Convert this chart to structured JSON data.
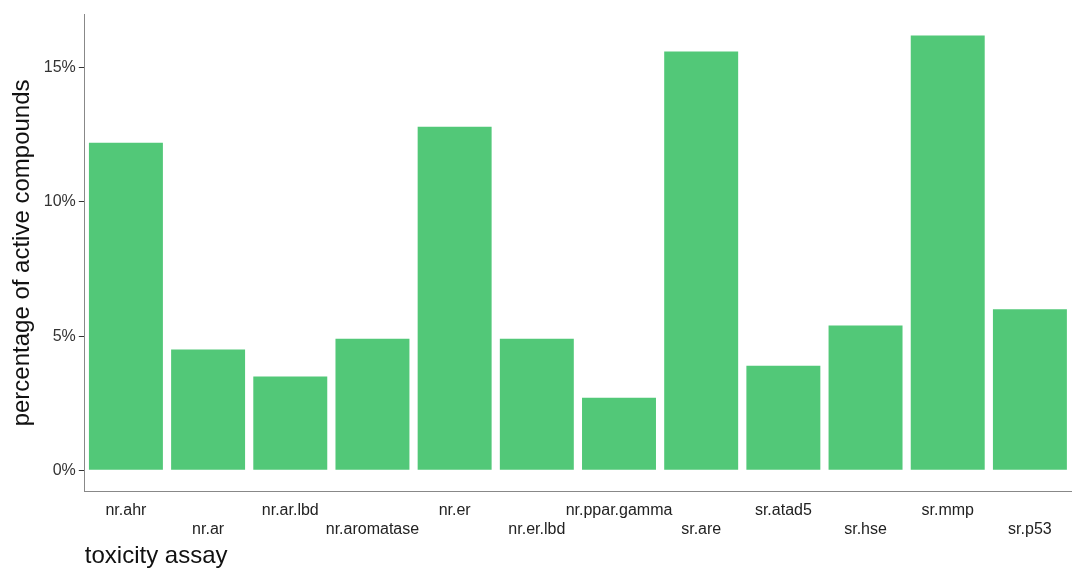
{
  "chart_data": {
    "type": "bar",
    "xlabel": "toxicity assay",
    "ylabel": "percentage of active compounds",
    "categories": [
      "nr.ahr",
      "nr.ar",
      "nr.ar.lbd",
      "nr.aromatase",
      "nr.er",
      "nr.er.lbd",
      "nr.ppar.gamma",
      "sr.are",
      "sr.atad5",
      "sr.hse",
      "sr.mmp",
      "sr.p53"
    ],
    "values": [
      12.2,
      4.5,
      3.5,
      4.9,
      12.8,
      4.9,
      2.7,
      15.6,
      3.9,
      5.4,
      16.2,
      6.0
    ],
    "color": "#52c878",
    "ylim": [
      -0.8,
      17
    ],
    "yticks": [
      {
        "value": 0,
        "label": "0%"
      },
      {
        "value": 5,
        "label": "5%"
      },
      {
        "value": 10,
        "label": "10%"
      },
      {
        "value": 15,
        "label": "15%"
      }
    ],
    "grid": false,
    "legend": false
  }
}
